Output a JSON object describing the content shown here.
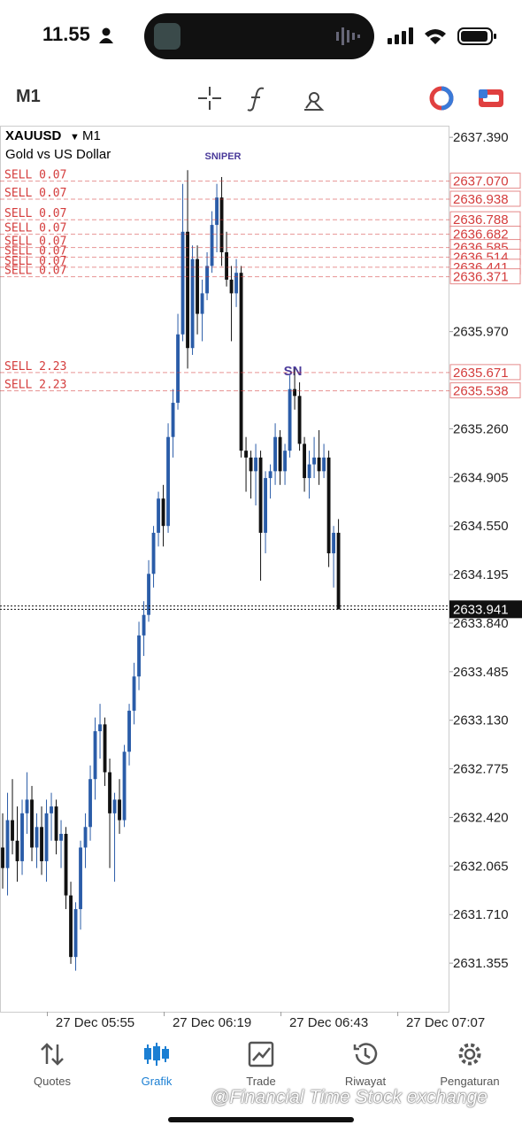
{
  "status_bar": {
    "time": "11.55"
  },
  "toolbar": {
    "timeframe": "M1"
  },
  "chart_data": {
    "type": "candlestick",
    "symbol": "XAUUSD",
    "timeframe": "M1",
    "description": "Gold vs US Dollar",
    "annotations": [
      "SNIPER",
      "SN"
    ],
    "ylim": [
      2631.0,
      2637.475
    ],
    "xlim": [
      -0.55,
      91.8
    ],
    "yticks": [
      {
        "value": 2637.39,
        "label": "2637.390"
      },
      {
        "value": 2635.97,
        "label": "2635.970"
      },
      {
        "value": 2635.26,
        "label": "2635.260"
      },
      {
        "value": 2634.905,
        "label": "2634.905"
      },
      {
        "value": 2634.55,
        "label": "2634.550"
      },
      {
        "value": 2634.195,
        "label": "2634.195"
      },
      {
        "value": 2633.84,
        "label": "2633.840"
      },
      {
        "value": 2633.485,
        "label": "2633.485"
      },
      {
        "value": 2633.13,
        "label": "2633.130"
      },
      {
        "value": 2632.775,
        "label": "2632.775"
      },
      {
        "value": 2632.42,
        "label": "2632.420"
      },
      {
        "value": 2632.065,
        "label": "2632.065"
      },
      {
        "value": 2631.71,
        "label": "2631.710"
      },
      {
        "value": 2631.355,
        "label": "2631.355"
      }
    ],
    "xticks": [
      {
        "value": 19,
        "label": "27 Dec 05:55"
      },
      {
        "value": 43,
        "label": "27 Dec 06:19"
      },
      {
        "value": 67,
        "label": "27 Dec 06:43"
      },
      {
        "value": 91,
        "label": "27 Dec 07:07"
      }
    ],
    "up_color": "#2a5ca8",
    "down_color": "#111111",
    "open": [
      2632.2,
      2632.05,
      2632.4,
      2632.25,
      2632.1,
      2632.45,
      2632.55,
      2632.2,
      2632.35,
      2632.1,
      2632.45,
      2632.5,
      2632.25,
      2632.3,
      2631.85,
      2631.4,
      2631.75,
      2632.2,
      2632.35,
      2632.7,
      2633.05,
      2633.1,
      2632.75,
      2632.45,
      2632.55,
      2632.4,
      2632.9,
      2633.2,
      2633.45,
      2633.75,
      2633.9,
      2634.2,
      2634.5,
      2634.75,
      2634.55,
      2635.2,
      2635.45,
      2635.95,
      2636.7,
      2635.85,
      2636.5,
      2636.1,
      2636.25,
      2636.45,
      2636.75,
      2636.95,
      2636.55,
      2636.35,
      2636.25,
      2636.4,
      2635.1,
      2635.05,
      2634.95,
      2635.05,
      2634.5,
      2634.9,
      2634.95,
      2635.2,
      2634.95,
      2635.1,
      2635.55,
      2635.5,
      2635.15,
      2634.9,
      2635.0,
      2635.05,
      2634.95,
      2635.05,
      2634.35,
      2634.5
    ],
    "high": [
      2632.45,
      2632.6,
      2632.7,
      2632.5,
      2632.55,
      2632.75,
      2632.65,
      2632.45,
      2632.5,
      2632.55,
      2632.6,
      2632.55,
      2632.4,
      2632.35,
      2631.95,
      2631.8,
      2632.25,
      2632.45,
      2632.8,
      2633.15,
      2633.25,
      2633.15,
      2632.85,
      2632.6,
      2632.7,
      2632.95,
      2633.25,
      2633.55,
      2633.85,
      2634.0,
      2634.3,
      2634.55,
      2634.8,
      2634.85,
      2635.3,
      2635.55,
      2636.1,
      2637.05,
      2637.15,
      2636.6,
      2636.6,
      2636.35,
      2636.55,
      2636.85,
      2637.05,
      2637.1,
      2636.7,
      2636.45,
      2636.5,
      2636.45,
      2635.2,
      2635.1,
      2635.15,
      2635.1,
      2634.95,
      2635.0,
      2635.3,
      2635.25,
      2635.15,
      2635.65,
      2635.7,
      2635.6,
      2635.2,
      2635.1,
      2635.2,
      2635.25,
      2635.15,
      2635.1,
      2634.55,
      2634.6
    ],
    "low": [
      2631.9,
      2631.85,
      2632.15,
      2631.95,
      2632.0,
      2632.3,
      2632.1,
      2632.05,
      2632.0,
      2631.95,
      2632.25,
      2632.15,
      2632.05,
      2631.75,
      2631.35,
      2631.3,
      2631.6,
      2632.05,
      2632.25,
      2632.55,
      2632.85,
      2632.65,
      2632.05,
      2631.95,
      2632.3,
      2632.35,
      2632.8,
      2633.1,
      2633.35,
      2633.6,
      2633.85,
      2634.1,
      2634.4,
      2634.4,
      2634.5,
      2635.05,
      2635.4,
      2635.9,
      2635.7,
      2635.8,
      2635.95,
      2635.9,
      2636.2,
      2636.4,
      2636.55,
      2636.45,
      2636.3,
      2635.9,
      2636.15,
      2635.05,
      2634.8,
      2634.75,
      2634.7,
      2634.15,
      2634.35,
      2634.75,
      2634.85,
      2634.85,
      2634.85,
      2635.05,
      2635.4,
      2635.1,
      2634.8,
      2634.75,
      2634.9,
      2634.85,
      2634.9,
      2634.25,
      2634.1,
      2633.94
    ],
    "close": [
      2632.05,
      2632.4,
      2632.25,
      2632.1,
      2632.45,
      2632.55,
      2632.2,
      2632.35,
      2632.1,
      2632.45,
      2632.5,
      2632.25,
      2632.3,
      2631.85,
      2631.4,
      2631.75,
      2632.2,
      2632.35,
      2632.7,
      2633.05,
      2633.1,
      2632.75,
      2632.45,
      2632.55,
      2632.4,
      2632.9,
      2633.2,
      2633.45,
      2633.75,
      2633.9,
      2634.2,
      2634.5,
      2634.75,
      2634.55,
      2635.2,
      2635.45,
      2635.95,
      2636.7,
      2635.85,
      2636.5,
      2636.1,
      2636.25,
      2636.45,
      2636.75,
      2636.95,
      2636.55,
      2636.35,
      2636.25,
      2636.4,
      2635.1,
      2635.05,
      2634.95,
      2635.05,
      2634.5,
      2634.9,
      2634.95,
      2635.2,
      2634.95,
      2635.1,
      2635.55,
      2635.5,
      2635.15,
      2634.9,
      2635.0,
      2635.05,
      2634.95,
      2635.05,
      2634.35,
      2634.5,
      2633.94
    ],
    "order_color": "#d43c3c",
    "orders": [
      {
        "label": "SELL 0.07",
        "price": {
          "value": 2637.07,
          "label": "2637.070"
        }
      },
      {
        "label": "SELL 0.07",
        "price": {
          "value": 2636.938,
          "label": "2636.938"
        }
      },
      {
        "label": "SELL 0.07",
        "price": {
          "value": 2636.788,
          "label": "2636.788"
        }
      },
      {
        "label": "SELL 0.07",
        "price": {
          "value": 2636.682,
          "label": "2636.682"
        }
      },
      {
        "label": "SELL 0.07",
        "price": {
          "value": 2636.585,
          "label": "2636.585"
        }
      },
      {
        "label": "SELL 0.07",
        "price": {
          "value": 2636.514,
          "label": "2636.514"
        }
      },
      {
        "label": "SELL 0.07",
        "price": {
          "value": 2636.441,
          "label": "2636.441"
        }
      },
      {
        "label": "SELL 0.07",
        "price": {
          "value": 2636.371,
          "label": "2636.371"
        }
      },
      {
        "label": "SELL 2.23",
        "price": {
          "value": 2635.671,
          "label": "2635.671"
        }
      },
      {
        "label": "SELL 2.23",
        "price": {
          "value": 2635.538,
          "label": "2635.538"
        }
      }
    ],
    "ask_line": 2633.965,
    "bid": {
      "value": 2633.941,
      "label": "2633.941"
    }
  },
  "tabs": [
    "Quotes",
    "Grafik",
    "Trade",
    "Riwayat",
    "Pengaturan"
  ],
  "watermark": "@Financial Time Stock exchange"
}
